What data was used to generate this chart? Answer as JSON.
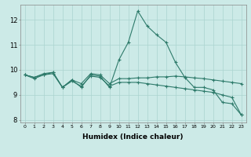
{
  "title": "",
  "xlabel": "Humidex (Indice chaleur)",
  "background_color": "#cceae7",
  "grid_color": "#aad4d0",
  "line_color": "#2d7a6a",
  "x": [
    0,
    1,
    2,
    3,
    4,
    5,
    6,
    7,
    8,
    9,
    10,
    11,
    12,
    13,
    14,
    15,
    16,
    17,
    18,
    19,
    20,
    21,
    22,
    23
  ],
  "line1": [
    9.8,
    9.7,
    9.8,
    9.9,
    9.3,
    9.6,
    9.3,
    9.8,
    9.75,
    9.3,
    10.4,
    11.1,
    12.35,
    11.75,
    11.4,
    11.1,
    10.3,
    9.7,
    9.3,
    9.3,
    9.2,
    8.7,
    8.65,
    8.2
  ],
  "line2": [
    9.8,
    9.7,
    9.85,
    9.9,
    9.3,
    9.6,
    9.45,
    9.85,
    9.8,
    9.45,
    9.65,
    9.65,
    9.68,
    9.68,
    9.72,
    9.72,
    9.75,
    9.72,
    9.68,
    9.65,
    9.6,
    9.55,
    9.5,
    9.45
  ],
  "line3": [
    9.8,
    9.65,
    9.8,
    9.85,
    9.3,
    9.55,
    9.35,
    9.75,
    9.7,
    9.35,
    9.5,
    9.5,
    9.5,
    9.45,
    9.4,
    9.35,
    9.3,
    9.25,
    9.2,
    9.15,
    9.1,
    9.0,
    8.9,
    8.2
  ],
  "ylim": [
    7.9,
    12.6
  ],
  "yticks": [
    8,
    9,
    10,
    11,
    12
  ],
  "xticks": [
    0,
    1,
    2,
    3,
    4,
    5,
    6,
    7,
    8,
    9,
    10,
    11,
    12,
    13,
    14,
    15,
    16,
    17,
    18,
    19,
    20,
    21,
    22,
    23
  ]
}
